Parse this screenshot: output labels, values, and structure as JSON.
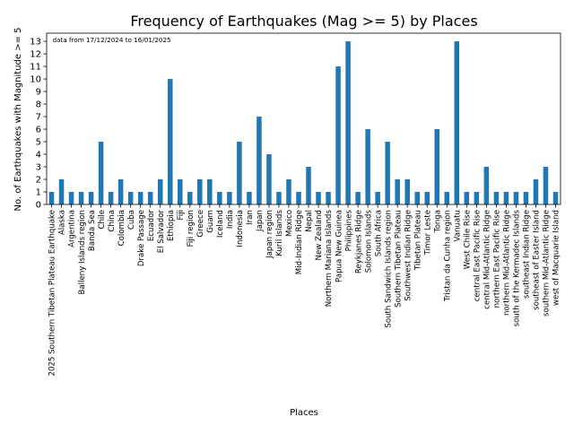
{
  "chart_data": {
    "type": "bar",
    "title": "Frequency of Earthquakes (Mag >= 5) by Places",
    "xlabel": "Places",
    "ylabel": "No. of Earthquakes with Magnitude >= 5",
    "annotation": "data from 17/12/2024 to 16/01/2025",
    "ylim": [
      0,
      13.65
    ],
    "yticks": [
      0,
      1,
      2,
      3,
      4,
      5,
      6,
      7,
      8,
      9,
      10,
      11,
      12,
      13
    ],
    "grid": false,
    "bar_color": "#1f77b4",
    "categories": [
      "2025 Southern Tibetan Plateau Earthquake",
      "Alaska",
      "Argentina",
      "Balleny Islands region",
      "Banda Sea",
      "Chile",
      "China",
      "Colombia",
      "Cuba",
      "Drake Passage",
      "Ecuador",
      "El Salvador",
      "Ethiopia",
      "Fiji",
      "Fiji region",
      "Greece",
      "Guam",
      "Iceland",
      "India",
      "Indonesia",
      "Iran",
      "Japan",
      "Japan region",
      "Kuril Islands",
      "Mexico",
      "Mid-Indian Ridge",
      "Nepal",
      "New Zealand",
      "Northern Mariana Islands",
      "Papua New Guinea",
      "Philippines",
      "Reykjanes Ridge",
      "Solomon Islands",
      "South Africa",
      "South Sandwich Islands region",
      "Southern Tibetan Plateau",
      "Southwest Indian Ridge",
      "Tibetan Plateau",
      "Timor Leste",
      "Tonga",
      "Tristan da Cunha region",
      "Vanuatu",
      "West Chile Rise",
      "central East Pacific Rise",
      "central Mid-Atlantic Ridge",
      "northern East Pacific Rise",
      "northern Mid-Atlantic Ridge",
      "south of the Kermadec Islands",
      "southeast Indian Ridge",
      "southeast of Easter Island",
      "southern Mid-Atlantic Ridge",
      "west of Macquarie Island"
    ],
    "values": [
      1,
      2,
      1,
      1,
      1,
      5,
      1,
      2,
      1,
      1,
      1,
      2,
      10,
      2,
      1,
      2,
      2,
      1,
      1,
      5,
      1,
      7,
      4,
      1,
      2,
      1,
      3,
      1,
      1,
      11,
      13,
      1,
      6,
      1,
      5,
      2,
      2,
      1,
      1,
      6,
      1,
      13,
      1,
      1,
      3,
      1,
      1,
      1,
      1,
      2,
      3,
      1
    ]
  }
}
